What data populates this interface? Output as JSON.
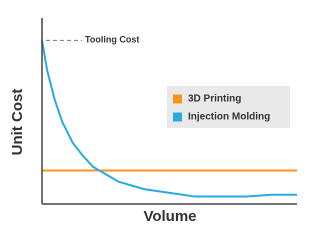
{
  "chart_data": {
    "type": "line",
    "xlabel": "Volume",
    "ylabel": "Unit Cost",
    "x": [
      0,
      2,
      5,
      8,
      12,
      16,
      20,
      25,
      30,
      40,
      50,
      60,
      70,
      80,
      90,
      100
    ],
    "xlim": [
      0,
      100
    ],
    "ylim": [
      0,
      100
    ],
    "series": [
      {
        "name": "3D Printing",
        "color": "#f7941d",
        "values": [
          18,
          18,
          18,
          18,
          18,
          18,
          18,
          18,
          18,
          18,
          18,
          18,
          18,
          18,
          18,
          18
        ]
      },
      {
        "name": "Injection Molding",
        "color": "#29aae1",
        "values": [
          88,
          72,
          56,
          44,
          33,
          26,
          20,
          16,
          12,
          8,
          6,
          4,
          4,
          4,
          5,
          5
        ]
      }
    ],
    "annotation": {
      "text": "Tooling Cost",
      "value": 88
    },
    "legend": "right"
  }
}
